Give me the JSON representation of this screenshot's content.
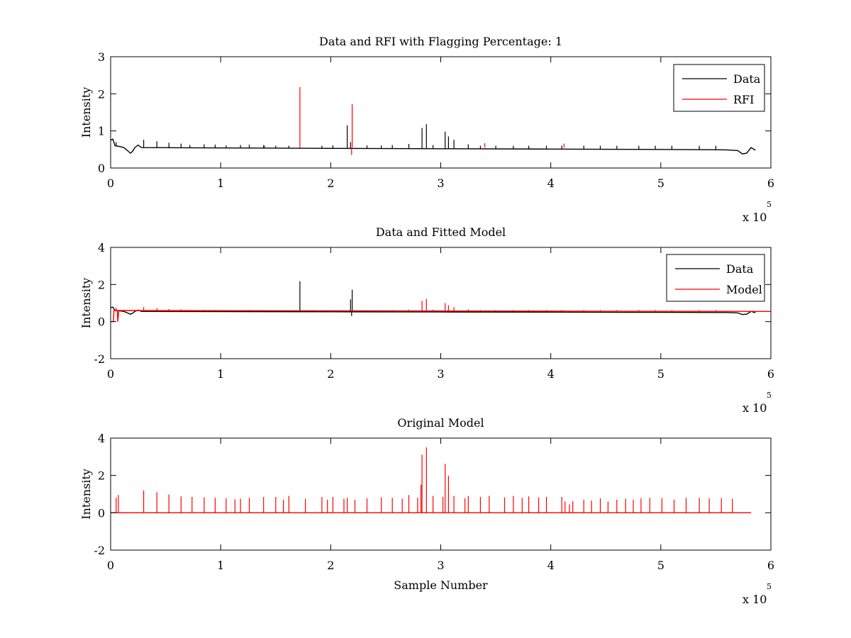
{
  "chart_data": [
    {
      "type": "line",
      "title": "Data and RFI with Flagging Percentage: 1",
      "xlabel": "",
      "ylabel": "Intensity",
      "xlim": [
        0,
        600000
      ],
      "ylim": [
        0,
        3
      ],
      "xticks": [
        "0",
        "1",
        "2",
        "3",
        "4",
        "5",
        "6"
      ],
      "yticks": [
        "0",
        "1",
        "2",
        "3"
      ],
      "x_multiplier_text": "x 10",
      "x_multiplier_exp": "5",
      "legend_position": "top-right",
      "series": [
        {
          "name": "Data",
          "color": "#000000",
          "kind": "trace",
          "baseline": [
            [
              0,
              0.75
            ],
            [
              2000,
              0.78
            ],
            [
              4000,
              0.6
            ],
            [
              8000,
              0.58
            ],
            [
              12000,
              0.55
            ],
            [
              16000,
              0.45
            ],
            [
              18000,
              0.4
            ],
            [
              20000,
              0.45
            ],
            [
              22000,
              0.55
            ],
            [
              25000,
              0.62
            ],
            [
              28000,
              0.55
            ],
            [
              100000,
              0.54
            ],
            [
              200000,
              0.53
            ],
            [
              300000,
              0.52
            ],
            [
              400000,
              0.51
            ],
            [
              500000,
              0.5
            ],
            [
              560000,
              0.49
            ],
            [
              570000,
              0.47
            ],
            [
              574000,
              0.38
            ],
            [
              578000,
              0.4
            ],
            [
              582000,
              0.55
            ],
            [
              586000,
              0.48
            ]
          ],
          "spikes": [
            [
              5000,
              0.7
            ],
            [
              30000,
              0.76
            ],
            [
              42000,
              0.72
            ],
            [
              53000,
              0.68
            ],
            [
              64000,
              0.66
            ],
            [
              72000,
              0.62
            ],
            [
              85000,
              0.64
            ],
            [
              95000,
              0.63
            ],
            [
              105000,
              0.61
            ],
            [
              118000,
              0.62
            ],
            [
              126000,
              0.63
            ],
            [
              139000,
              0.62
            ],
            [
              150000,
              0.6
            ],
            [
              162000,
              0.6
            ],
            [
              192000,
              0.6
            ],
            [
              202000,
              0.61
            ],
            [
              215000,
              1.15
            ],
            [
              218000,
              0.7
            ],
            [
              233000,
              0.61
            ],
            [
              246000,
              0.61
            ],
            [
              256000,
              0.62
            ],
            [
              271000,
              0.65
            ],
            [
              283000,
              1.08
            ],
            [
              287000,
              1.18
            ],
            [
              293000,
              0.62
            ],
            [
              304000,
              0.98
            ],
            [
              307000,
              0.85
            ],
            [
              312000,
              0.76
            ],
            [
              325000,
              0.64
            ],
            [
              336000,
              0.6
            ],
            [
              350000,
              0.6
            ],
            [
              366000,
              0.6
            ],
            [
              380000,
              0.6
            ],
            [
              396000,
              0.6
            ],
            [
              410000,
              0.6
            ],
            [
              430000,
              0.6
            ],
            [
              445000,
              0.6
            ],
            [
              460000,
              0.6
            ],
            [
              480000,
              0.6
            ],
            [
              495000,
              0.6
            ],
            [
              510000,
              0.6
            ],
            [
              535000,
              0.6
            ],
            [
              550000,
              0.6
            ]
          ]
        },
        {
          "name": "RFI",
          "color": "#ff0000",
          "kind": "spikes",
          "spikes": [
            [
              172000,
              2.18
            ],
            [
              219500,
              1.72
            ],
            [
              219000,
              0.35
            ],
            [
              32000,
              0.55
            ],
            [
              140000,
              0.6
            ],
            [
              340000,
              0.67
            ],
            [
              412000,
              0.66
            ]
          ]
        }
      ]
    },
    {
      "type": "line",
      "title": "Data and Fitted Model",
      "xlabel": "",
      "ylabel": "Intensity",
      "xlim": [
        0,
        600000
      ],
      "ylim": [
        -2,
        4
      ],
      "xticks": [
        "0",
        "1",
        "2",
        "3",
        "4",
        "5",
        "6"
      ],
      "yticks": [
        "-2",
        "0",
        "2",
        "4"
      ],
      "x_multiplier_text": "x 10",
      "x_multiplier_exp": "5",
      "legend_position": "top-right",
      "series": [
        {
          "name": "Data",
          "color": "#000000",
          "kind": "trace",
          "baseline": [
            [
              0,
              0.75
            ],
            [
              2000,
              0.78
            ],
            [
              4000,
              0.6
            ],
            [
              8000,
              0.58
            ],
            [
              12000,
              0.55
            ],
            [
              16000,
              0.45
            ],
            [
              18000,
              0.4
            ],
            [
              20000,
              0.45
            ],
            [
              22000,
              0.55
            ],
            [
              25000,
              0.62
            ],
            [
              28000,
              0.55
            ],
            [
              100000,
              0.54
            ],
            [
              200000,
              0.53
            ],
            [
              300000,
              0.52
            ],
            [
              400000,
              0.51
            ],
            [
              500000,
              0.5
            ],
            [
              560000,
              0.49
            ],
            [
              570000,
              0.47
            ],
            [
              574000,
              0.38
            ],
            [
              578000,
              0.4
            ],
            [
              582000,
              0.55
            ],
            [
              586000,
              0.48
            ]
          ],
          "spikes": [
            [
              172000,
              2.18
            ],
            [
              218000,
              1.2
            ],
            [
              219500,
              1.72
            ],
            [
              219000,
              0.3
            ]
          ]
        },
        {
          "name": "Model",
          "color": "#ff0000",
          "kind": "trace",
          "baseline": [
            [
              0,
              0.0
            ],
            [
              2500,
              0.0
            ],
            [
              3000,
              0.6
            ],
            [
              6000,
              0.6
            ],
            [
              6500,
              0.0
            ],
            [
              7500,
              0.6
            ],
            [
              600000,
              0.55
            ]
          ],
          "spikes": [
            [
              5000,
              0.75
            ],
            [
              30000,
              0.78
            ],
            [
              42000,
              0.72
            ],
            [
              53000,
              0.68
            ],
            [
              64000,
              0.66
            ],
            [
              72000,
              0.64
            ],
            [
              85000,
              0.64
            ],
            [
              95000,
              0.63
            ],
            [
              105000,
              0.62
            ],
            [
              118000,
              0.62
            ],
            [
              126000,
              0.63
            ],
            [
              139000,
              0.62
            ],
            [
              150000,
              0.6
            ],
            [
              162000,
              0.6
            ],
            [
              192000,
              0.6
            ],
            [
              202000,
              0.61
            ],
            [
              233000,
              0.61
            ],
            [
              246000,
              0.61
            ],
            [
              256000,
              0.62
            ],
            [
              271000,
              0.65
            ],
            [
              283000,
              1.12
            ],
            [
              287000,
              1.22
            ],
            [
              293000,
              0.65
            ],
            [
              304000,
              1.0
            ],
            [
              307000,
              0.88
            ],
            [
              312000,
              0.78
            ],
            [
              325000,
              0.66
            ],
            [
              336000,
              0.62
            ],
            [
              350000,
              0.62
            ],
            [
              366000,
              0.62
            ],
            [
              380000,
              0.62
            ],
            [
              396000,
              0.62
            ],
            [
              410000,
              0.62
            ],
            [
              430000,
              0.62
            ],
            [
              445000,
              0.62
            ],
            [
              460000,
              0.62
            ],
            [
              480000,
              0.62
            ],
            [
              495000,
              0.62
            ],
            [
              510000,
              0.62
            ],
            [
              535000,
              0.62
            ],
            [
              550000,
              0.62
            ]
          ]
        }
      ]
    },
    {
      "type": "line",
      "title": "Original Model",
      "xlabel": "Sample Number",
      "ylabel": "Intensity",
      "xlim": [
        0,
        600000
      ],
      "ylim": [
        -2,
        4
      ],
      "xticks": [
        "0",
        "1",
        "2",
        "3",
        "4",
        "5",
        "6"
      ],
      "yticks": [
        "-2",
        "0",
        "2",
        "4"
      ],
      "x_multiplier_text": "x 10",
      "x_multiplier_exp": "5",
      "series": [
        {
          "color": "#ff0000",
          "kind": "trace",
          "baseline": [
            [
              0,
              0.0
            ],
            [
              582000,
              0.0
            ]
          ],
          "spikes": [
            [
              5000,
              0.8
            ],
            [
              7000,
              0.95
            ],
            [
              30000,
              1.2
            ],
            [
              42000,
              1.1
            ],
            [
              53000,
              0.98
            ],
            [
              64000,
              0.88
            ],
            [
              74000,
              0.85
            ],
            [
              85000,
              0.82
            ],
            [
              95000,
              0.8
            ],
            [
              105000,
              0.78
            ],
            [
              113000,
              0.72
            ],
            [
              118000,
              0.75
            ],
            [
              126000,
              0.8
            ],
            [
              139000,
              0.85
            ],
            [
              150000,
              0.85
            ],
            [
              157000,
              0.7
            ],
            [
              162000,
              0.9
            ],
            [
              177000,
              0.75
            ],
            [
              192000,
              0.85
            ],
            [
              197000,
              0.7
            ],
            [
              202000,
              0.85
            ],
            [
              212000,
              0.75
            ],
            [
              215000,
              0.8
            ],
            [
              222000,
              0.7
            ],
            [
              233000,
              0.78
            ],
            [
              246000,
              0.82
            ],
            [
              256000,
              0.8
            ],
            [
              265000,
              0.75
            ],
            [
              271000,
              0.95
            ],
            [
              279000,
              0.8
            ],
            [
              282000,
              1.5
            ],
            [
              283000,
              3.12
            ],
            [
              287000,
              3.5
            ],
            [
              293000,
              0.9
            ],
            [
              302000,
              0.85
            ],
            [
              304000,
              2.62
            ],
            [
              307000,
              1.98
            ],
            [
              312000,
              0.9
            ],
            [
              322000,
              0.78
            ],
            [
              325000,
              0.9
            ],
            [
              336000,
              0.85
            ],
            [
              344000,
              0.9
            ],
            [
              358000,
              0.82
            ],
            [
              366000,
              0.9
            ],
            [
              374000,
              0.8
            ],
            [
              380000,
              0.88
            ],
            [
              389000,
              0.82
            ],
            [
              396000,
              0.85
            ],
            [
              410000,
              0.85
            ],
            [
              413000,
              0.6
            ],
            [
              417000,
              0.45
            ],
            [
              420000,
              0.62
            ],
            [
              430000,
              0.7
            ],
            [
              437000,
              0.65
            ],
            [
              445000,
              0.78
            ],
            [
              452000,
              0.6
            ],
            [
              460000,
              0.7
            ],
            [
              468000,
              0.75
            ],
            [
              475000,
              0.7
            ],
            [
              482000,
              0.78
            ],
            [
              490000,
              0.8
            ],
            [
              501000,
              0.78
            ],
            [
              512000,
              0.7
            ],
            [
              523000,
              0.8
            ],
            [
              535000,
              0.8
            ],
            [
              544000,
              0.78
            ],
            [
              555000,
              0.78
            ],
            [
              565000,
              0.75
            ]
          ]
        }
      ]
    }
  ]
}
